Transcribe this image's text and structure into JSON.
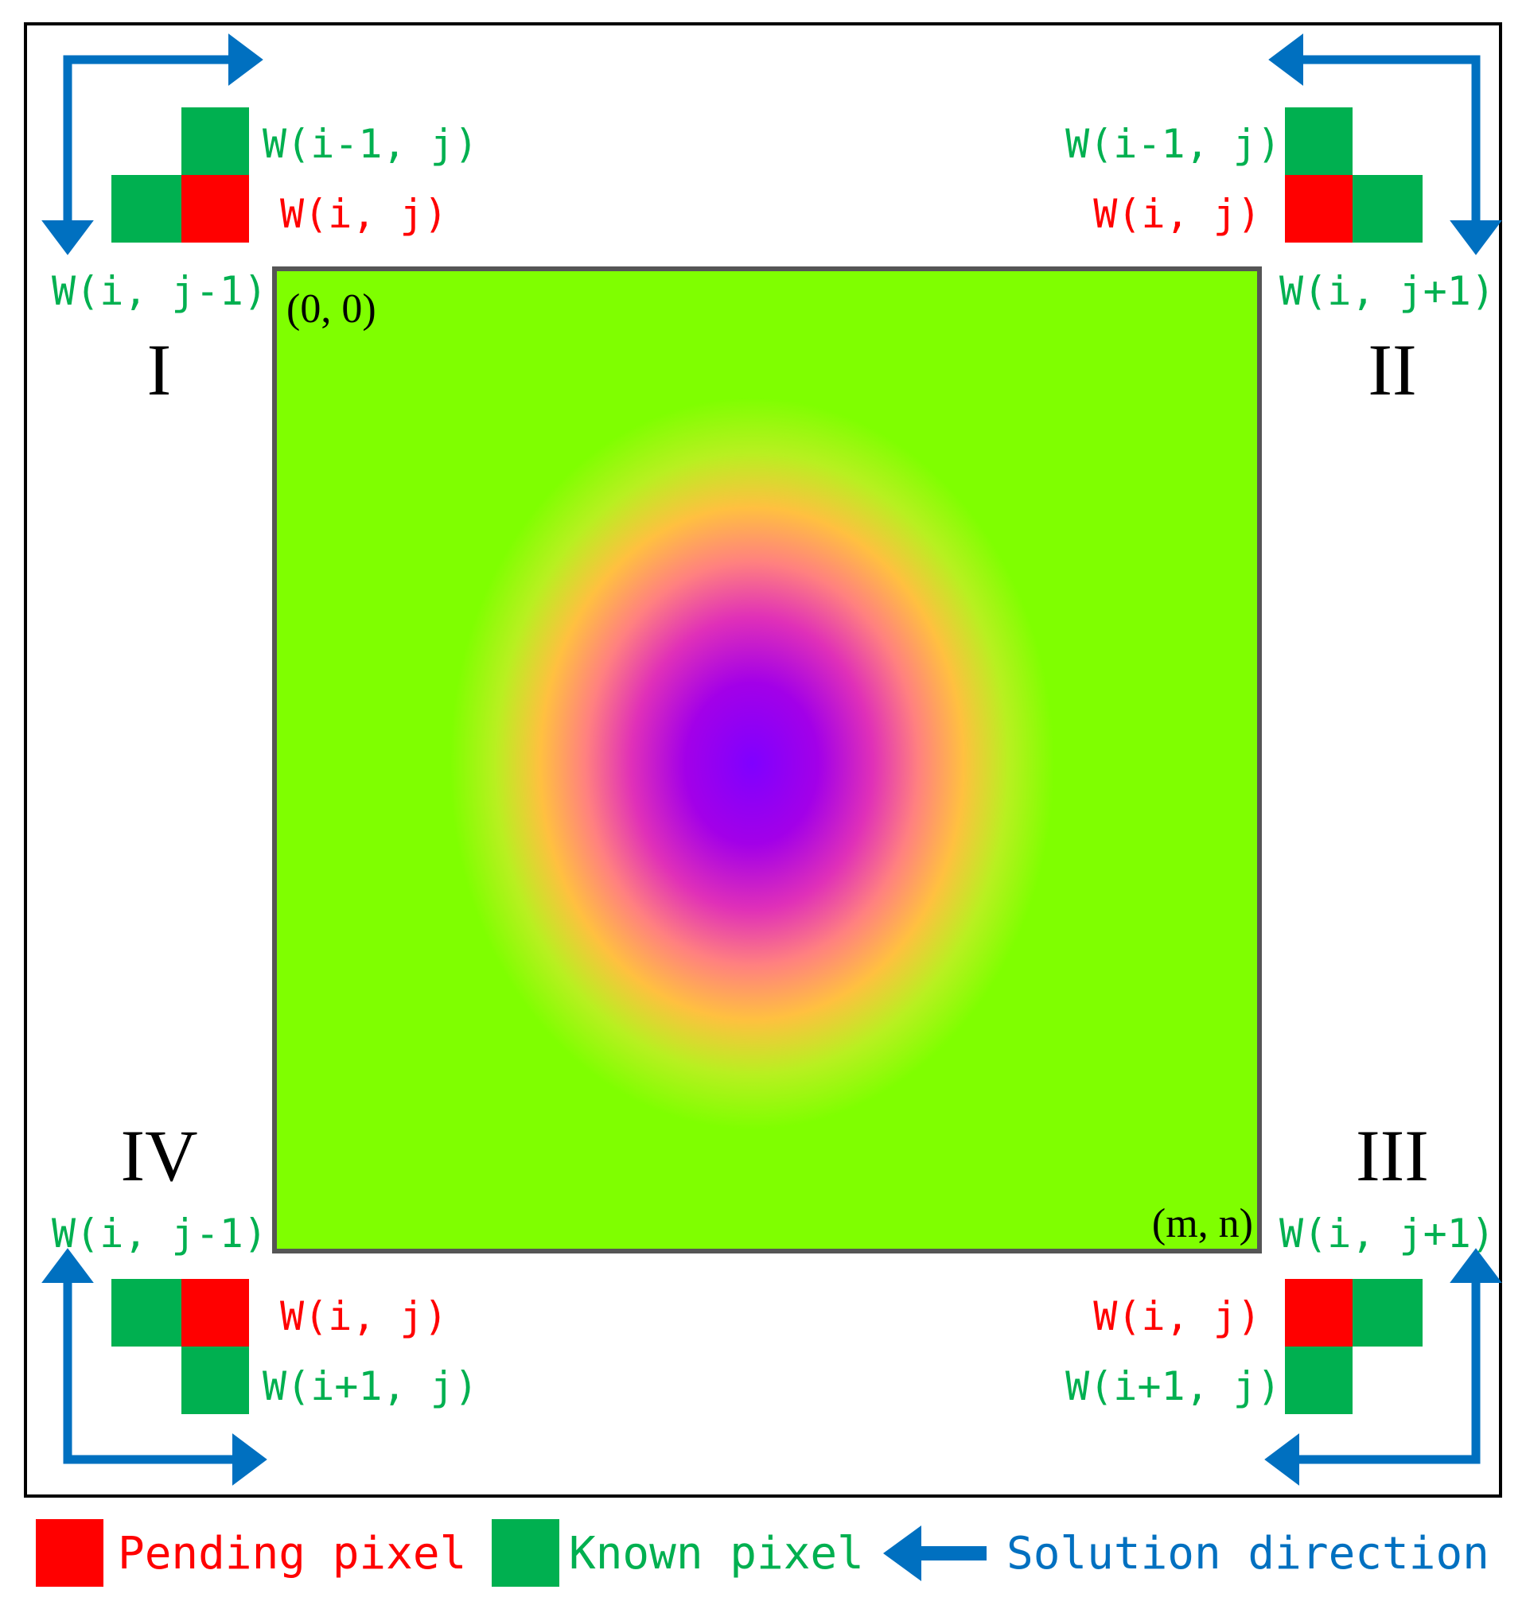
{
  "colors": {
    "pending": "#ff0000",
    "known": "#00b050",
    "arrow": "#0070c0",
    "field_outer": "#7fff00",
    "field_core": "#8000ff"
  },
  "grid": {
    "origin_label": "(0, 0)",
    "end_label": "(m, n)"
  },
  "quadrants": {
    "I": {
      "numeral": "I",
      "label_prev_row": "W(i-1, j)",
      "label_current": "W(i, j)",
      "label_prev_col": "W(i, j-1)"
    },
    "II": {
      "numeral": "II",
      "label_prev_row": "W(i-1, j)",
      "label_current": "W(i, j)",
      "label_next_col": "W(i, j+1)"
    },
    "III": {
      "numeral": "III",
      "label_next_col": "W(i, j+1)",
      "label_current": "W(i, j)",
      "label_next_row": "W(i+1, j)"
    },
    "IV": {
      "numeral": "IV",
      "label_prev_col": "W(i, j-1)",
      "label_current": "W(i, j)",
      "label_next_row": "W(i+1, j)"
    }
  },
  "legend": {
    "pending_label": "Pending pixel",
    "known_label": "Known pixel",
    "direction_label": "Solution direction",
    "arrow_icon": "left-arrow-icon"
  }
}
